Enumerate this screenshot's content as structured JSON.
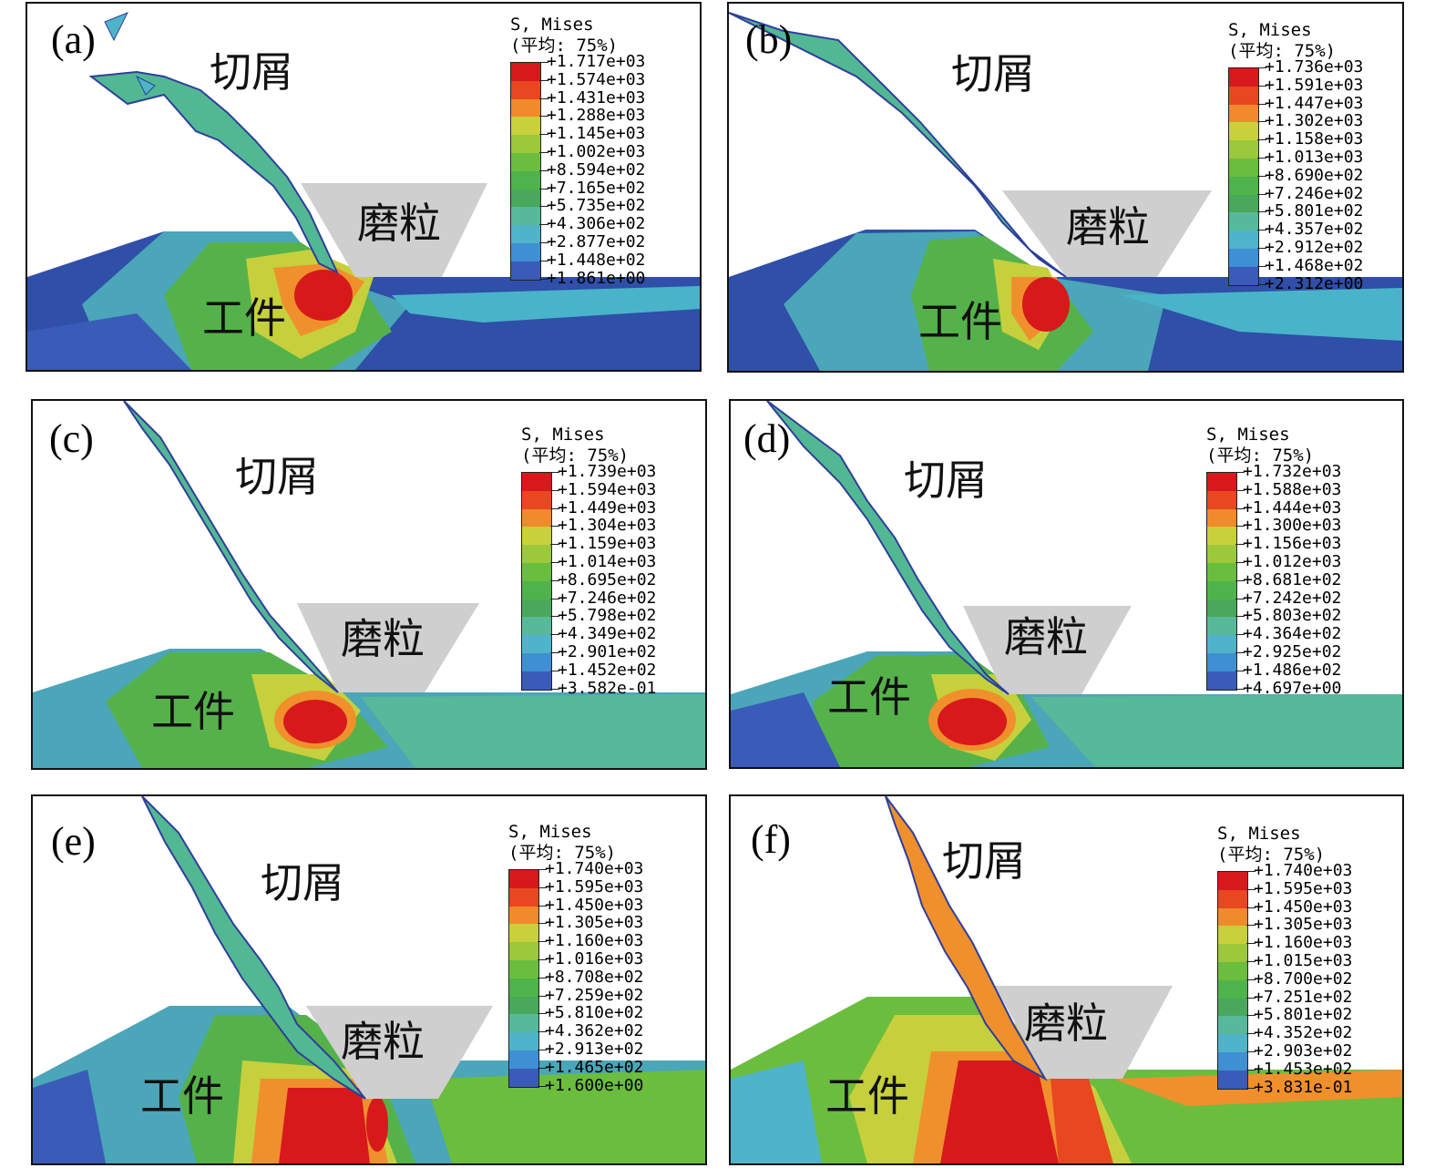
{
  "legend_colors": [
    "#d7191c",
    "#e8471f",
    "#f18a2a",
    "#c8d13a",
    "#9cc83c",
    "#6bbd3e",
    "#4fb34c",
    "#49a85b",
    "#56b99a",
    "#4fb4c9",
    "#3f8fd4",
    "#3a5bb8",
    "#2e3f9a"
  ],
  "panels": [
    {
      "label": "(a)",
      "chip": "切屑",
      "grain": "磨粒",
      "work": "工件",
      "legend": {
        "title": "S, Mises",
        "subtitle": "(平均: 75%)",
        "values": [
          "+1.717e+03",
          "+1.574e+03",
          "+1.431e+03",
          "+1.288e+03",
          "+1.145e+03",
          "+1.002e+03",
          "+8.594e+02",
          "+7.165e+02",
          "+5.735e+02",
          "+4.306e+02",
          "+2.877e+02",
          "+1.448e+02",
          "+1.861e+00"
        ]
      }
    },
    {
      "label": "(b)",
      "chip": "切屑",
      "grain": "磨粒",
      "work": "工件",
      "legend": {
        "title": "S, Mises",
        "subtitle": "(平均: 75%)",
        "values": [
          "+1.736e+03",
          "+1.591e+03",
          "+1.447e+03",
          "+1.302e+03",
          "+1.158e+03",
          "+1.013e+03",
          "+8.690e+02",
          "+7.246e+02",
          "+5.801e+02",
          "+4.357e+02",
          "+2.912e+02",
          "+1.468e+02",
          "+2.312e+00"
        ]
      }
    },
    {
      "label": "(c)",
      "chip": "切屑",
      "grain": "磨粒",
      "work": "工件",
      "legend": {
        "title": "S, Mises",
        "subtitle": "(平均: 75%)",
        "values": [
          "+1.739e+03",
          "+1.594e+03",
          "+1.449e+03",
          "+1.304e+03",
          "+1.159e+03",
          "+1.014e+03",
          "+8.695e+02",
          "+7.246e+02",
          "+5.798e+02",
          "+4.349e+02",
          "+2.901e+02",
          "+1.452e+02",
          "+3.582e-01"
        ]
      }
    },
    {
      "label": "(d)",
      "chip": "切屑",
      "grain": "磨粒",
      "work": "工件",
      "legend": {
        "title": "S, Mises",
        "subtitle": "(平均: 75%)",
        "values": [
          "+1.732e+03",
          "+1.588e+03",
          "+1.444e+03",
          "+1.300e+03",
          "+1.156e+03",
          "+1.012e+03",
          "+8.681e+02",
          "+7.242e+02",
          "+5.803e+02",
          "+4.364e+02",
          "+2.925e+02",
          "+1.486e+02",
          "+4.697e+00"
        ]
      }
    },
    {
      "label": "(e)",
      "chip": "切屑",
      "grain": "磨粒",
      "work": "工件",
      "legend": {
        "title": "S, Mises",
        "subtitle": "(平均: 75%)",
        "values": [
          "+1.740e+03",
          "+1.595e+03",
          "+1.450e+03",
          "+1.305e+03",
          "+1.160e+03",
          "+1.016e+03",
          "+8.708e+02",
          "+7.259e+02",
          "+5.810e+02",
          "+4.362e+02",
          "+2.913e+02",
          "+1.465e+02",
          "+1.600e+00"
        ]
      }
    },
    {
      "label": "(f)",
      "chip": "切屑",
      "grain": "磨粒",
      "work": "工件",
      "legend": {
        "title": "S, Mises",
        "subtitle": "(平均: 75%)",
        "values": [
          "+1.740e+03",
          "+1.595e+03",
          "+1.450e+03",
          "+1.305e+03",
          "+1.160e+03",
          "+1.015e+03",
          "+8.700e+02",
          "+7.251e+02",
          "+5.801e+02",
          "+4.352e+02",
          "+2.903e+02",
          "+1.453e+02",
          "+3.831e-01"
        ]
      }
    }
  ]
}
